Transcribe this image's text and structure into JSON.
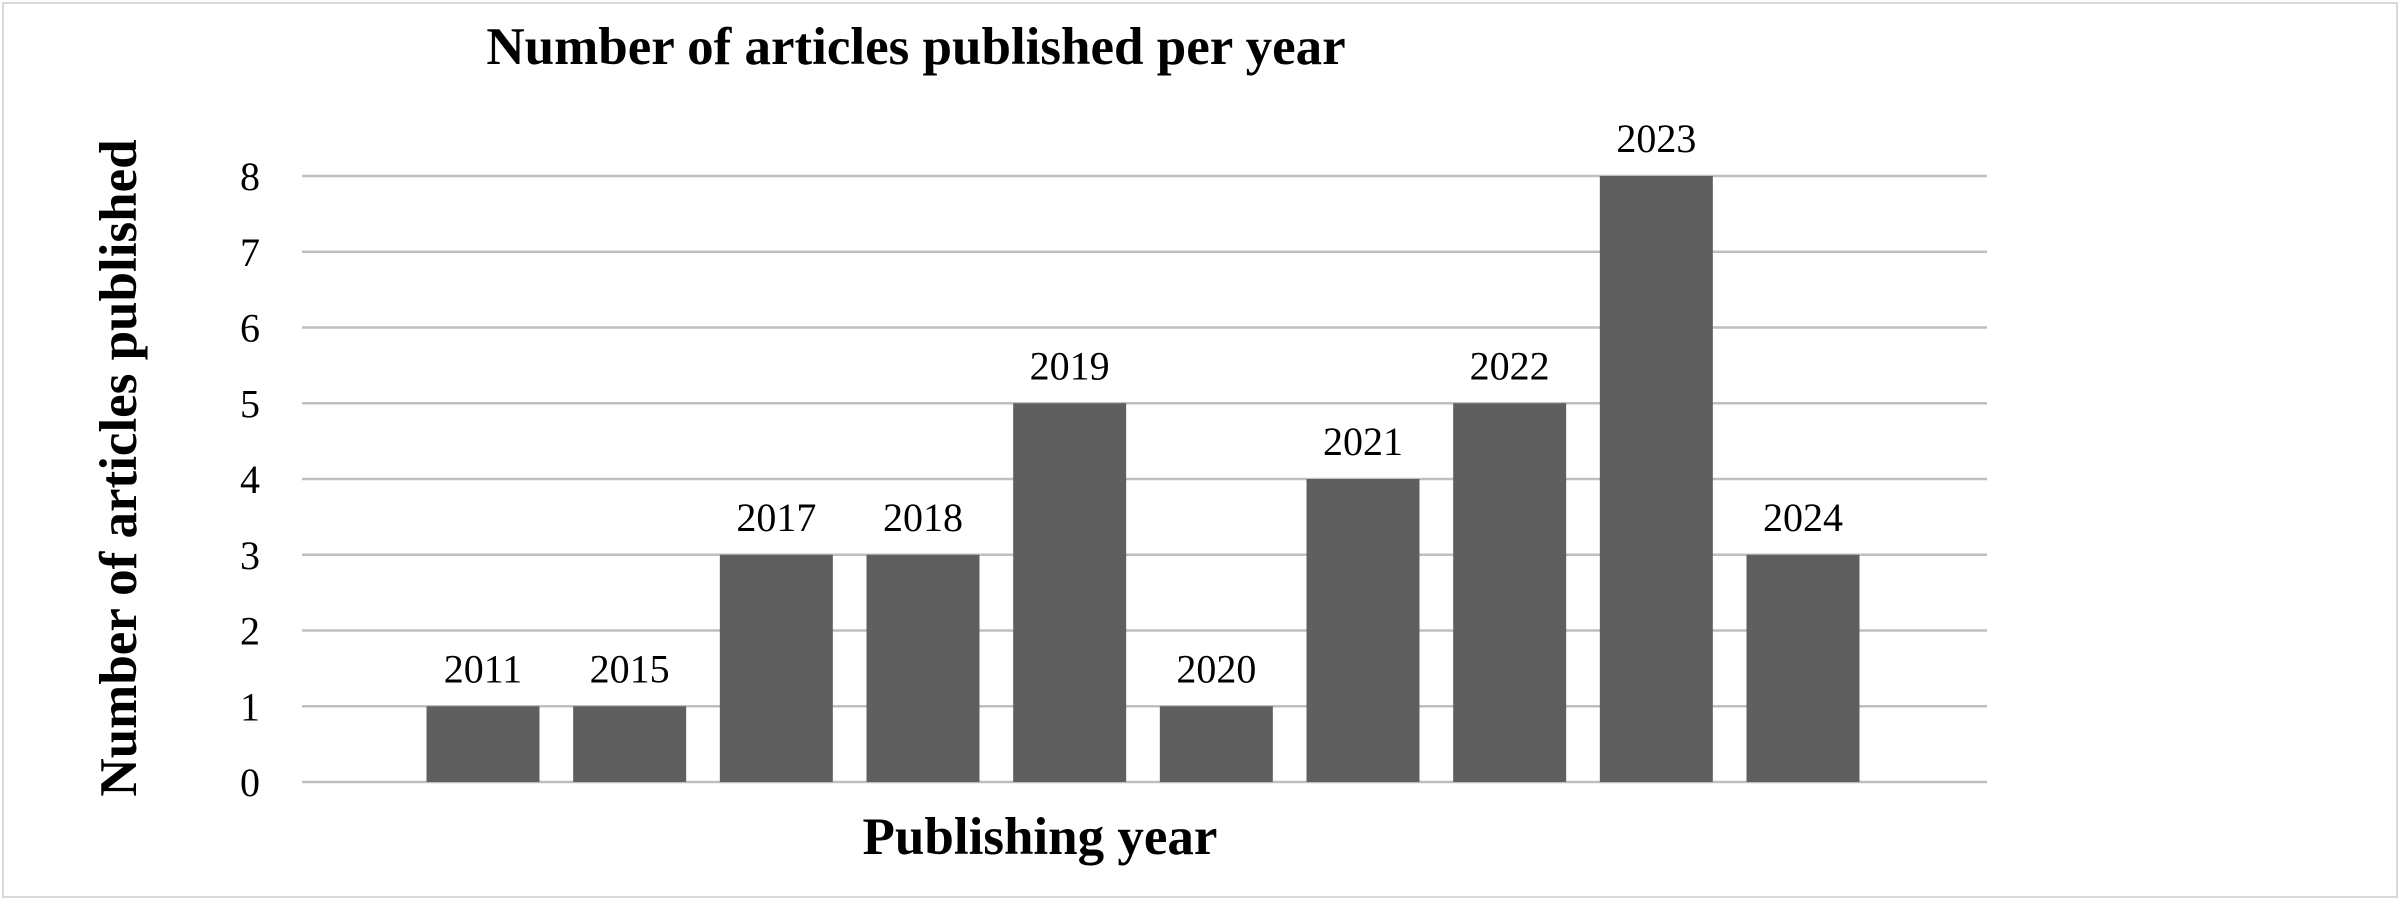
{
  "chart_data": {
    "type": "bar",
    "title": "Number of articles published per year",
    "xlabel": "Publishing year",
    "ylabel": "Number of articles published",
    "categories": [
      "2011",
      "2015",
      "2017",
      "2018",
      "2019",
      "2020",
      "2021",
      "2022",
      "2023",
      "2024"
    ],
    "values": [
      1,
      1,
      3,
      3,
      5,
      1,
      4,
      5,
      8,
      3
    ],
    "ylim": [
      0,
      8
    ],
    "yticks": [
      "0",
      "1",
      "2",
      "3",
      "4",
      "5",
      "6",
      "7",
      "8"
    ],
    "grid": true,
    "legend": "none",
    "bar_color": "#5f5f5f",
    "grid_color": "#bfbfbf"
  }
}
